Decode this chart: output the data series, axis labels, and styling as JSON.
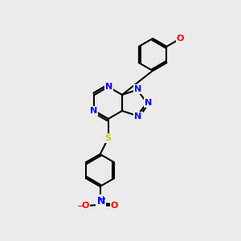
{
  "background_color": "#ebebeb",
  "bond_color": "#000000",
  "bond_width": 1.5,
  "atom_colors": {
    "N": "#0000ff",
    "O": "#ff0000",
    "S": "#cccc00",
    "C": "#000000"
  },
  "font_size": 8
}
